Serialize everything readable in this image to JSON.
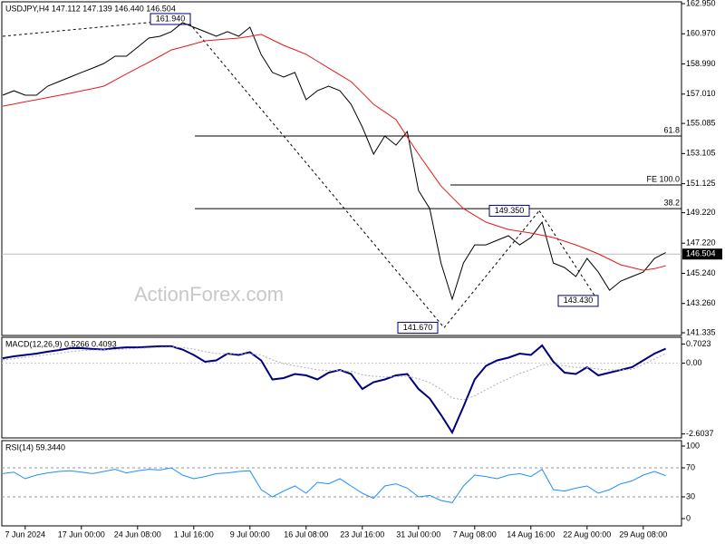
{
  "chart_data": [
    {
      "type": "line",
      "title": "USDJPY,H4 147.112 147.139 146.440 146.504",
      "ylim": [
        141.16,
        163.07
      ],
      "yticks": [
        {
          "value": 162.95,
          "label": "162.950"
        },
        {
          "value": 160.97,
          "label": "160.970"
        },
        {
          "value": 158.99,
          "label": "158.990"
        },
        {
          "value": 157.01,
          "label": "157.010"
        },
        {
          "value": 155.085,
          "label": "155.085"
        },
        {
          "value": 153.105,
          "label": "153.105"
        },
        {
          "value": 151.125,
          "label": "151.125"
        },
        {
          "value": 149.22,
          "label": "149.220"
        },
        {
          "value": 147.22,
          "label": "147.220"
        },
        {
          "value": 145.24,
          "label": "145.240"
        },
        {
          "value": 143.26,
          "label": "143.260"
        },
        {
          "value": 141.335,
          "label": "141.335"
        }
      ],
      "series": [
        {
          "color": "#000000",
          "values": [
            156.94,
            157.23,
            156.94,
            156.94,
            157.53,
            157.83,
            158.13,
            158.43,
            158.72,
            159.02,
            159.5,
            159.5,
            160.09,
            160.69,
            160.81,
            161.11,
            161.7,
            161.4,
            161.11,
            160.81,
            161.11,
            160.81,
            161.4,
            159.6,
            158.43,
            158.13,
            158.43,
            156.64,
            157.23,
            157.53,
            157.23,
            156.34,
            154.85,
            153.07,
            154.26,
            153.66,
            154.55,
            150.68,
            149.49,
            145.92,
            143.54,
            145.92,
            147.11,
            147.11,
            147.41,
            147.71,
            147.11,
            147.59,
            148.6,
            145.92,
            145.62,
            145.03,
            146.22,
            145.32,
            144.13,
            144.73,
            145.03,
            145.32,
            146.22,
            146.6
          ]
        },
        {
          "color": "#e41a1a",
          "values": [
            156.22,
            156.36,
            156.5,
            156.64,
            156.78,
            156.92,
            157.06,
            157.22,
            157.37,
            157.53,
            157.93,
            158.33,
            158.72,
            159.1,
            159.5,
            159.91,
            160.1,
            160.3,
            160.51,
            160.57,
            160.63,
            160.69,
            160.8,
            160.93,
            160.57,
            160.21,
            159.92,
            159.62,
            159.17,
            158.72,
            158.27,
            157.83,
            157.1,
            156.34,
            155.84,
            155.33,
            154.2,
            153.07,
            152.02,
            150.98,
            150.23,
            149.49,
            149.04,
            148.6,
            148.36,
            148.12,
            148.0,
            147.89,
            147.74,
            147.59,
            147.35,
            147.11,
            146.82,
            146.52,
            146.16,
            145.8,
            145.62,
            145.44,
            145.55,
            145.74
          ]
        }
      ],
      "pivots": [
        {
          "value": 161.94,
          "label": "161.940"
        },
        {
          "value": 141.67,
          "label": "141.670"
        },
        {
          "value": 149.35,
          "label": "149.350"
        },
        {
          "value": 143.43,
          "label": "143.430"
        }
      ],
      "levels": [
        {
          "value": 154.26,
          "label": "61.8"
        },
        {
          "value": 151.04,
          "label": "FE 100.0"
        },
        {
          "value": 149.49,
          "label": "38.2"
        }
      ],
      "last_price": {
        "value": 146.504,
        "label": "146.504"
      },
      "watermark": "ActionForex.com"
    },
    {
      "type": "line",
      "title": "MACD(12,26,9) 0.5266 0.4093",
      "ylim": [
        -2.75,
        0.95
      ],
      "yticks": [
        0.7023,
        {
          "value": 0,
          "label": "0.00"
        },
        -2.6037
      ],
      "series": [
        {
          "color": "#00007f",
          "values": [
            0.18,
            0.25,
            0.3,
            0.35,
            0.42,
            0.48,
            0.55,
            0.55,
            0.52,
            0.5,
            0.55,
            0.58,
            0.58,
            0.6,
            0.62,
            0.62,
            0.5,
            0.3,
            0.05,
            0.1,
            0.35,
            0.3,
            0.4,
            0.1,
            -0.6,
            -0.55,
            -0.4,
            -0.45,
            -0.6,
            -0.35,
            -0.25,
            -0.4,
            -0.95,
            -0.7,
            -0.6,
            -0.45,
            -0.4,
            -0.95,
            -1.3,
            -1.9,
            -2.55,
            -1.6,
            -0.6,
            -0.1,
            0.1,
            0.2,
            0.35,
            0.3,
            0.65,
            0.05,
            -0.35,
            -0.4,
            -0.15,
            -0.45,
            -0.35,
            -0.25,
            -0.15,
            0.1,
            0.35,
            0.53
          ]
        },
        {
          "color": "#b0b0b0",
          "values": [
            0.12,
            0.16,
            0.21,
            0.26,
            0.31,
            0.36,
            0.42,
            0.46,
            0.48,
            0.49,
            0.5,
            0.52,
            0.54,
            0.56,
            0.58,
            0.59,
            0.57,
            0.52,
            0.42,
            0.35,
            0.35,
            0.34,
            0.35,
            0.3,
            0.12,
            -0.02,
            -0.1,
            -0.17,
            -0.25,
            -0.27,
            -0.27,
            -0.3,
            -0.43,
            -0.48,
            -0.51,
            -0.5,
            -0.48,
            -0.57,
            -0.72,
            -0.96,
            -1.28,
            -1.35,
            -1.2,
            -0.98,
            -0.76,
            -0.57,
            -0.38,
            -0.24,
            -0.06,
            -0.04,
            -0.1,
            -0.16,
            -0.16,
            -0.22,
            -0.25,
            -0.25,
            -0.23,
            -0.05,
            0.15,
            0.35
          ]
        }
      ]
    },
    {
      "type": "line",
      "title": "RSI(14) 59.3440",
      "ylim": [
        -10,
        107.5
      ],
      "yticks": [
        100,
        70,
        30,
        0
      ],
      "levels": [
        70,
        30
      ],
      "categories": [
        null,
        null,
        "7 Jun 2024",
        null,
        null,
        null,
        null,
        "17 Jun 00:00",
        null,
        null,
        null,
        null,
        "24 Jun 08:00",
        null,
        null,
        null,
        null,
        "1 Jul 16:00",
        null,
        null,
        null,
        null,
        "9 Jul 00:00",
        null,
        null,
        null,
        null,
        "16 Jul 08:00",
        null,
        null,
        null,
        null,
        "23 Jul 16:00",
        null,
        null,
        null,
        null,
        "31 Jul 00:00",
        null,
        null,
        null,
        null,
        "7 Aug 08:00",
        null,
        null,
        null,
        null,
        "14 Aug 16:00",
        null,
        null,
        null,
        null,
        "22 Aug 00:00",
        null,
        null,
        null,
        null,
        "29 Aug 08:00",
        null,
        null
      ],
      "series": [
        {
          "color": "#1e90ff",
          "values": [
            62,
            64,
            55,
            60,
            63,
            65,
            66,
            64,
            62,
            65,
            68,
            63,
            66,
            68,
            67,
            70,
            60,
            55,
            58,
            62,
            63,
            65,
            66,
            40,
            30,
            38,
            45,
            35,
            50,
            48,
            55,
            45,
            35,
            28,
            45,
            48,
            42,
            30,
            32,
            25,
            22,
            45,
            60,
            58,
            55,
            60,
            62,
            58,
            68,
            40,
            38,
            42,
            45,
            35,
            40,
            48,
            52,
            60,
            65,
            59.3
          ]
        }
      ]
    }
  ]
}
